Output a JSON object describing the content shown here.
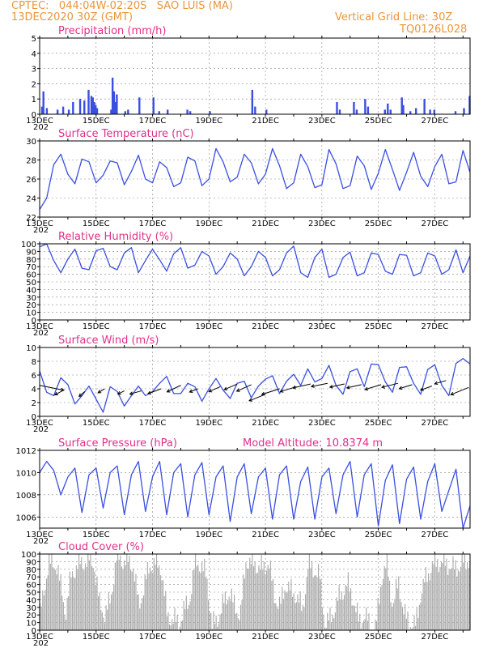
{
  "header": {
    "line1": "CPTEC:   044:04W-02:20S   SAO LUIS (MA)",
    "line2": "13DEC2020 30Z (GMT)",
    "right1": "Vertical Grid Line: 30Z",
    "right2": "TQ0126L028",
    "model_altitude": "Model Altitude: 10.8374 m"
  },
  "colors": {
    "accent": "#e8963c",
    "title": "#e0308a",
    "line": "#3a4fe0",
    "cloud": "#a9a9a9"
  },
  "x_labels": [
    "13DEC",
    "15DEC",
    "17DEC",
    "19DEC",
    "21DEC",
    "23DEC",
    "25DEC",
    "27DEC"
  ],
  "x_year_fragment": "202",
  "chart_data": [
    {
      "id": "precip",
      "type": "bar",
      "title": "Precipitation (mm/h)",
      "ylim": [
        0,
        5
      ],
      "yticks": [
        0,
        1,
        2,
        3,
        4,
        5
      ],
      "x_days": [
        0.05,
        0.1,
        0.22,
        0.6,
        0.8,
        1.0,
        1.15,
        1.4,
        1.55,
        1.7,
        1.8,
        1.85,
        1.9,
        1.95,
        2.0,
        2.5,
        2.55,
        2.6,
        2.65,
        2.7,
        3.0,
        3.1,
        3.5,
        4.0,
        4.2,
        4.5,
        5.2,
        5.3,
        6.0,
        7.5,
        7.6,
        8.0,
        10.5,
        10.6,
        11.1,
        11.2,
        11.5,
        11.6,
        12.2,
        12.3,
        12.4,
        12.8,
        12.85,
        13.1,
        13.3,
        13.6,
        13.8,
        13.95,
        14.7,
        15.0,
        15.2
      ],
      "values": [
        0.5,
        1.5,
        0.4,
        0.3,
        0.5,
        0.3,
        0.8,
        1.0,
        0.9,
        1.6,
        1.2,
        1.1,
        0.8,
        0.6,
        0.4,
        0.3,
        2.4,
        1.5,
        0.8,
        1.3,
        0.2,
        0.3,
        1.1,
        1.1,
        0.2,
        0.3,
        0.3,
        0.2,
        0.2,
        1.6,
        0.5,
        0.3,
        0.8,
        0.3,
        0.8,
        0.3,
        1.0,
        0.5,
        0.3,
        0.7,
        0.3,
        1.1,
        0.6,
        0.2,
        0.4,
        1.0,
        0.3,
        0.3,
        0.2,
        0.4,
        1.2
      ]
    },
    {
      "id": "temp",
      "type": "line",
      "title": "Surface Temperature (nC)",
      "ylim": [
        22,
        30
      ],
      "yticks": [
        22,
        24,
        26,
        28,
        30
      ],
      "x_days": [
        0,
        0.25,
        0.5,
        0.75,
        1.0,
        1.25,
        1.5,
        1.75,
        2.0,
        2.25,
        2.5,
        2.75,
        3.0,
        3.25,
        3.5,
        3.75,
        4.0,
        4.25,
        4.5,
        4.75,
        5.0,
        5.25,
        5.5,
        5.75,
        6.0,
        6.25,
        6.5,
        6.75,
        7.0,
        7.25,
        7.5,
        7.75,
        8.0,
        8.25,
        8.5,
        8.75,
        9.0,
        9.25,
        9.5,
        9.75,
        10.0,
        10.25,
        10.5,
        10.75,
        11.0,
        11.25,
        11.5,
        11.75,
        12.0,
        12.25,
        12.5,
        12.75,
        13.0,
        13.25,
        13.5,
        13.75,
        14.0,
        14.25,
        14.5,
        14.75,
        15.0,
        15.25
      ],
      "values": [
        22.8,
        24.0,
        27.5,
        28.6,
        26.5,
        25.5,
        28.1,
        27.8,
        25.6,
        26.4,
        27.9,
        27.7,
        25.4,
        26.8,
        28.5,
        26.0,
        25.6,
        27.8,
        27.2,
        25.2,
        25.6,
        28.3,
        27.9,
        25.3,
        26.0,
        29.2,
        27.8,
        25.7,
        26.2,
        28.6,
        27.7,
        25.5,
        26.5,
        29.2,
        27.4,
        25.0,
        25.6,
        28.6,
        27.3,
        25.1,
        25.4,
        29.1,
        27.6,
        25.0,
        25.3,
        28.4,
        27.4,
        24.9,
        26.6,
        29.1,
        27.0,
        24.8,
        26.7,
        28.8,
        26.3,
        25.2,
        27.3,
        28.6,
        25.5,
        25.7,
        29.0,
        26.7
      ]
    },
    {
      "id": "rh",
      "type": "line",
      "title": "Relative Humidity (%)",
      "ylim": [
        0,
        100
      ],
      "yticks": [
        0,
        10,
        20,
        30,
        40,
        50,
        60,
        70,
        80,
        90,
        100
      ],
      "x_days": [
        0,
        0.25,
        0.5,
        0.75,
        1.0,
        1.25,
        1.5,
        1.75,
        2.0,
        2.25,
        2.5,
        2.75,
        3.0,
        3.25,
        3.5,
        3.75,
        4.0,
        4.25,
        4.5,
        4.75,
        5.0,
        5.25,
        5.5,
        5.75,
        6.0,
        6.25,
        6.5,
        6.75,
        7.0,
        7.25,
        7.5,
        7.75,
        8.0,
        8.25,
        8.5,
        8.75,
        9.0,
        9.25,
        9.5,
        9.75,
        10.0,
        10.25,
        10.5,
        10.75,
        11.0,
        11.25,
        11.5,
        11.75,
        12.0,
        12.25,
        12.5,
        12.75,
        13.0,
        13.25,
        13.5,
        13.75,
        14.0,
        14.25,
        14.5,
        14.75,
        15.0,
        15.25
      ],
      "values": [
        96,
        100,
        78,
        62,
        80,
        93,
        68,
        66,
        91,
        94,
        70,
        66,
        88,
        95,
        62,
        78,
        93,
        79,
        64,
        87,
        95,
        68,
        72,
        90,
        84,
        60,
        70,
        88,
        80,
        58,
        70,
        90,
        82,
        58,
        66,
        88,
        97,
        62,
        56,
        82,
        93,
        56,
        60,
        82,
        89,
        58,
        62,
        88,
        86,
        64,
        60,
        86,
        85,
        58,
        62,
        88,
        84,
        60,
        66,
        92,
        62,
        84
      ]
    },
    {
      "id": "wind",
      "type": "line",
      "title": "Surface Wind (m/s)",
      "ylim": [
        0,
        10
      ],
      "yticks": [
        0,
        2,
        4,
        6,
        8,
        10
      ],
      "x_days": [
        0,
        0.25,
        0.5,
        0.75,
        1.0,
        1.25,
        1.5,
        1.75,
        2.0,
        2.25,
        2.5,
        2.75,
        3.0,
        3.25,
        3.5,
        3.75,
        4.0,
        4.25,
        4.5,
        4.75,
        5.0,
        5.25,
        5.5,
        5.75,
        6.0,
        6.25,
        6.5,
        6.75,
        7.0,
        7.25,
        7.5,
        7.75,
        8.0,
        8.25,
        8.5,
        8.75,
        9.0,
        9.25,
        9.5,
        9.75,
        10.0,
        10.25,
        10.5,
        10.75,
        11.0,
        11.25,
        11.5,
        11.75,
        12.0,
        12.25,
        12.5,
        12.75,
        13.0,
        13.25,
        13.5,
        13.75,
        14.0,
        14.25,
        14.5,
        14.75,
        15.0,
        15.25
      ],
      "values": [
        6.6,
        3.5,
        3.0,
        5.6,
        4.6,
        1.8,
        3.0,
        4.4,
        2.5,
        0.6,
        4.3,
        3.6,
        1.5,
        3.0,
        4.4,
        3.0,
        3.6,
        4.8,
        5.8,
        3.3,
        3.3,
        4.8,
        4.3,
        2.2,
        4.0,
        5.5,
        3.8,
        2.6,
        4.8,
        5.1,
        2.7,
        4.4,
        5.4,
        5.9,
        3.3,
        5.1,
        6.1,
        4.5,
        6.9,
        5.0,
        5.5,
        7.4,
        4.5,
        3.2,
        6.5,
        6.9,
        4.3,
        7.6,
        7.5,
        5.0,
        3.5,
        7.1,
        7.2,
        4.8,
        3.2,
        6.8,
        7.5,
        4.5,
        3.0,
        7.7,
        8.4,
        7.6
      ],
      "arrows": [
        [
          0.0,
          4.5,
          30,
          -6
        ],
        [
          0.8,
          3.7,
          -9,
          -5
        ],
        [
          1.6,
          3.6,
          -7,
          -6
        ],
        [
          2.3,
          4.0,
          -8,
          -5
        ],
        [
          3.0,
          3.7,
          -8,
          -4
        ],
        [
          3.6,
          3.7,
          -14,
          -4
        ],
        [
          4.3,
          4.0,
          -16,
          -6
        ],
        [
          5.0,
          4.5,
          -17,
          -8
        ],
        [
          5.6,
          4.0,
          -10,
          -4
        ],
        [
          6.4,
          4.3,
          -14,
          -6
        ],
        [
          7.0,
          4.7,
          -16,
          -7
        ],
        [
          7.5,
          4.6,
          -18,
          -8
        ],
        [
          8.0,
          3.2,
          -20,
          -8
        ],
        [
          8.5,
          4.0,
          -22,
          -7
        ],
        [
          9.1,
          4.3,
          -20,
          -6
        ],
        [
          9.6,
          4.7,
          -22,
          -5
        ],
        [
          10.2,
          4.8,
          -20,
          -4
        ],
        [
          10.8,
          4.7,
          -18,
          -4
        ],
        [
          11.4,
          4.6,
          -18,
          -4
        ],
        [
          12.1,
          4.6,
          -20,
          -6
        ],
        [
          12.7,
          4.8,
          -20,
          -5
        ],
        [
          13.2,
          4.6,
          -16,
          -5
        ],
        [
          13.9,
          4.4,
          -14,
          -5
        ],
        [
          14.4,
          5.2,
          -14,
          -4
        ],
        [
          15.2,
          4.2,
          -22,
          -9
        ]
      ]
    },
    {
      "id": "pres",
      "type": "line",
      "title": "Surface Pressure (hPa)",
      "ylim": [
        1005,
        1012
      ],
      "yticks": [
        1006,
        1008,
        1010,
        1012
      ],
      "x_days": [
        0,
        0.25,
        0.5,
        0.75,
        1.0,
        1.25,
        1.5,
        1.75,
        2.0,
        2.25,
        2.5,
        2.75,
        3.0,
        3.25,
        3.5,
        3.75,
        4.0,
        4.25,
        4.5,
        4.75,
        5.0,
        5.25,
        5.5,
        5.75,
        6.0,
        6.25,
        6.5,
        6.75,
        7.0,
        7.25,
        7.5,
        7.75,
        8.0,
        8.25,
        8.5,
        8.75,
        9.0,
        9.25,
        9.5,
        9.75,
        10.0,
        10.25,
        10.5,
        10.75,
        11.0,
        11.25,
        11.5,
        11.75,
        12.0,
        12.25,
        12.5,
        12.75,
        13.0,
        13.25,
        13.5,
        13.75,
        14.0,
        14.25,
        14.5,
        14.75,
        15.0,
        15.25
      ],
      "values": [
        1010.0,
        1011.0,
        1010.2,
        1008.0,
        1009.6,
        1010.4,
        1006.4,
        1009.8,
        1010.4,
        1006.8,
        1010.0,
        1010.6,
        1006.2,
        1009.8,
        1011.0,
        1006.5,
        1009.6,
        1011.0,
        1006.2,
        1010.0,
        1010.8,
        1006.0,
        1009.8,
        1010.9,
        1006.2,
        1009.6,
        1010.6,
        1005.6,
        1009.6,
        1010.8,
        1006.3,
        1009.6,
        1010.4,
        1005.8,
        1009.8,
        1010.6,
        1005.8,
        1009.2,
        1010.5,
        1005.8,
        1009.6,
        1010.4,
        1006.3,
        1009.8,
        1011.0,
        1006.0,
        1009.8,
        1010.8,
        1005.2,
        1009.3,
        1010.7,
        1005.4,
        1009.4,
        1010.5,
        1005.8,
        1009.2,
        1010.8,
        1006.5,
        1008.4,
        1010.3,
        1005.0,
        1007.0
      ]
    },
    {
      "id": "cloud",
      "type": "area",
      "title": "Cloud Cover (%)",
      "ylim": [
        0,
        100
      ],
      "yticks": [
        0,
        10,
        20,
        30,
        40,
        50,
        60,
        70,
        80,
        90,
        100
      ],
      "x_days": [
        0,
        0.3,
        0.6,
        0.9,
        1.1,
        1.3,
        1.5,
        1.7,
        1.9,
        2.1,
        2.3,
        2.5,
        2.7,
        2.9,
        3.1,
        3.3,
        3.5,
        3.7,
        3.9,
        4.1,
        4.3,
        4.5,
        4.7,
        4.9,
        5.1,
        5.3,
        5.5,
        5.7,
        5.9,
        6.1,
        6.3,
        6.5,
        6.7,
        6.9,
        7.1,
        7.3,
        7.5,
        7.7,
        7.9,
        8.1,
        8.3,
        8.5,
        8.7,
        8.9,
        9.1,
        9.3,
        9.5,
        9.7,
        9.9,
        10.1,
        10.3,
        10.5,
        10.7,
        10.9,
        11.1,
        11.3,
        11.5,
        11.7,
        11.9,
        12.1,
        12.3,
        12.5,
        12.7,
        12.9,
        13.1,
        13.3,
        13.5,
        13.7,
        13.9,
        14.1,
        14.3,
        14.5,
        14.7,
        14.9,
        15.1,
        15.25
      ],
      "values": [
        20,
        88,
        85,
        22,
        70,
        85,
        88,
        92,
        89,
        35,
        20,
        40,
        95,
        92,
        90,
        85,
        30,
        60,
        85,
        88,
        80,
        18,
        15,
        8,
        25,
        40,
        90,
        85,
        70,
        5,
        15,
        35,
        50,
        30,
        20,
        92,
        88,
        85,
        80,
        90,
        45,
        30,
        60,
        50,
        45,
        25,
        85,
        80,
        70,
        8,
        15,
        35,
        50,
        60,
        40,
        10,
        20,
        5,
        3,
        70,
        85,
        30,
        65,
        20,
        10,
        5,
        50,
        70,
        85,
        90,
        88,
        85,
        80,
        86,
        90,
        95
      ]
    }
  ]
}
